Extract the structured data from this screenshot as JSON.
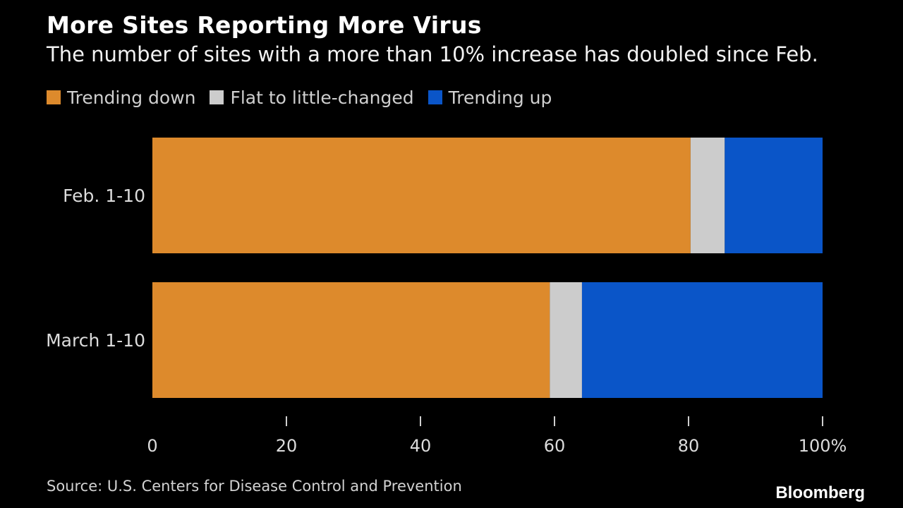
{
  "title": "More Sites Reporting More Virus",
  "subtitle": "The number of sites with a more than 10% increase has doubled since Feb.",
  "source": "Source: U.S. Centers for Disease Control and Prevention",
  "brand": "Bloomberg",
  "colors": {
    "background": "#000000",
    "trending_down": "#dd8a2c",
    "flat": "#cccccc",
    "trending_up": "#0a55c8",
    "text": "#ffffff"
  },
  "legend": [
    {
      "label": "Trending down",
      "color": "#dd8a2c"
    },
    {
      "label": "Flat to little-changed",
      "color": "#cccccc"
    },
    {
      "label": "Trending up",
      "color": "#0a55c8"
    }
  ],
  "chart_data": {
    "type": "bar",
    "orientation": "horizontal",
    "stacked": true,
    "title": "More Sites Reporting More Virus",
    "subtitle": "The number of sites with a more than 10% increase has doubled since Feb.",
    "categories": [
      "Feb. 1-10",
      "March 1-10"
    ],
    "series": [
      {
        "name": "Trending down",
        "color": "#dd8a2c",
        "values": [
          80.3,
          59.3
        ]
      },
      {
        "name": "Flat to little-changed",
        "color": "#cccccc",
        "values": [
          5.1,
          4.8
        ]
      },
      {
        "name": "Trending up",
        "color": "#0a55c8",
        "values": [
          14.6,
          35.9
        ]
      }
    ],
    "xlim": [
      0,
      100
    ],
    "x_ticks": [
      0,
      20,
      40,
      60,
      80,
      100
    ],
    "x_tick_labels": [
      "0",
      "20",
      "40",
      "60",
      "80",
      "100%"
    ],
    "xlabel": "",
    "ylabel": "",
    "grid": false,
    "legend_position": "top-left"
  }
}
